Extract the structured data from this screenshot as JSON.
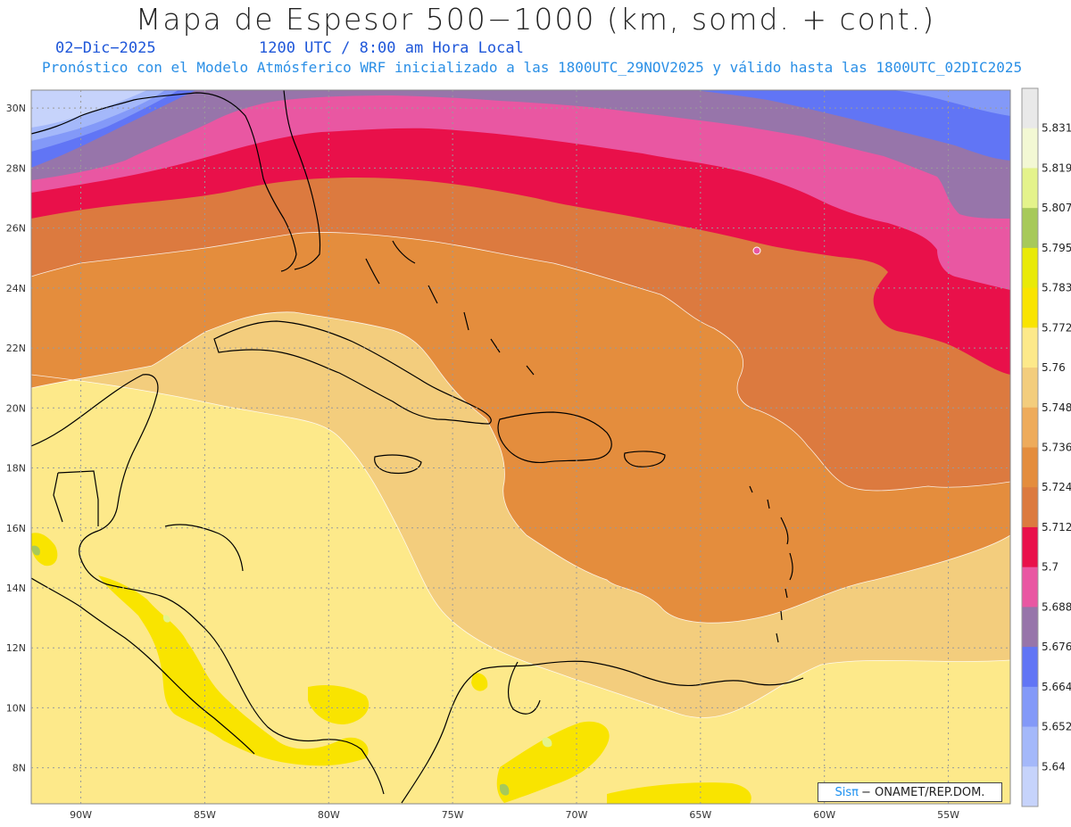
{
  "header": {
    "title": "Mapa de Espesor 500−1000 (km, somd. + cont.)",
    "date": "02−Dic−2025",
    "time": "1200 UTC / 8:00 am Hora Local",
    "description": "Pronóstico con el Modelo Atmósferico WRF inicializado a las 1800UTC_29NOV2025 y válido hasta las  1800UTC_02DIC2025"
  },
  "map": {
    "lat_labels": [
      "30N",
      "28N",
      "26N",
      "24N",
      "22N",
      "20N",
      "18N",
      "16N",
      "14N",
      "12N",
      "10N",
      "8N"
    ],
    "lon_labels": [
      "90W",
      "85W",
      "80W",
      "75W",
      "70W",
      "65W",
      "60W",
      "55W"
    ],
    "lat_range": [
      6.8,
      30.6
    ],
    "lon_range": [
      -92,
      -52.5
    ],
    "grid": true
  },
  "colorbar": {
    "levels": [
      "5.64",
      "5.652",
      "5.664",
      "5.676",
      "5.688",
      "5.7",
      "5.712",
      "5.724",
      "5.736",
      "5.748",
      "5.76",
      "5.772",
      "5.783",
      "5.795",
      "5.807",
      "5.819",
      "5.831"
    ],
    "colors": [
      "#c6d3fb",
      "#a4b8fa",
      "#8399f8",
      "#6175f5",
      "#9775aa",
      "#e957a2",
      "#e9104a",
      "#dc7a3f",
      "#e48d3d",
      "#eeab5b",
      "#f3cd7d",
      "#fde98a",
      "#f9e400",
      "#e9ea08",
      "#a7c95a",
      "#e4f38b",
      "#f3f8d4",
      "#e9e9e9"
    ]
  },
  "credit": {
    "brand": "Sisπ",
    "text": "− ONAMET/REP.DOM."
  }
}
